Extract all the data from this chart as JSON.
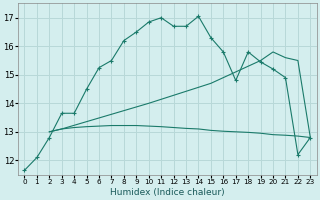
{
  "xlabel": "Humidex (Indice chaleur)",
  "bg_color": "#d4eeee",
  "grid_color": "#b8d8d8",
  "line_color": "#1a7a6a",
  "xlim": [
    -0.5,
    23.5
  ],
  "ylim": [
    11.5,
    17.5
  ],
  "yticks": [
    12,
    13,
    14,
    15,
    16,
    17
  ],
  "xticks": [
    0,
    1,
    2,
    3,
    4,
    5,
    6,
    7,
    8,
    9,
    10,
    11,
    12,
    13,
    14,
    15,
    16,
    17,
    18,
    19,
    20,
    21,
    22,
    23
  ],
  "series1_x": [
    0,
    1,
    2,
    3,
    4,
    5,
    6,
    7,
    8,
    9,
    10,
    11,
    12,
    13,
    14,
    15,
    16,
    17,
    18,
    19,
    20,
    21,
    22,
    23
  ],
  "series1_y": [
    11.65,
    12.1,
    12.8,
    13.65,
    13.65,
    14.5,
    15.25,
    15.5,
    16.2,
    16.5,
    16.85,
    17.0,
    16.7,
    16.7,
    17.05,
    16.3,
    15.8,
    14.8,
    15.8,
    15.45,
    15.2,
    14.9,
    12.2,
    12.8
  ],
  "series2_x": [
    2,
    3,
    4,
    5,
    6,
    7,
    8,
    9,
    10,
    11,
    12,
    13,
    14,
    15,
    16,
    17,
    18,
    19,
    20,
    21,
    22,
    23
  ],
  "series2_y": [
    13.0,
    13.1,
    13.15,
    13.18,
    13.2,
    13.22,
    13.22,
    13.22,
    13.2,
    13.18,
    13.15,
    13.12,
    13.1,
    13.05,
    13.02,
    13.0,
    12.98,
    12.95,
    12.9,
    12.88,
    12.85,
    12.8
  ],
  "series3_x": [
    2,
    3,
    10,
    15,
    19,
    20,
    21,
    22,
    23
  ],
  "series3_y": [
    13.0,
    13.1,
    14.0,
    14.7,
    15.5,
    15.8,
    15.6,
    15.5,
    12.8
  ]
}
